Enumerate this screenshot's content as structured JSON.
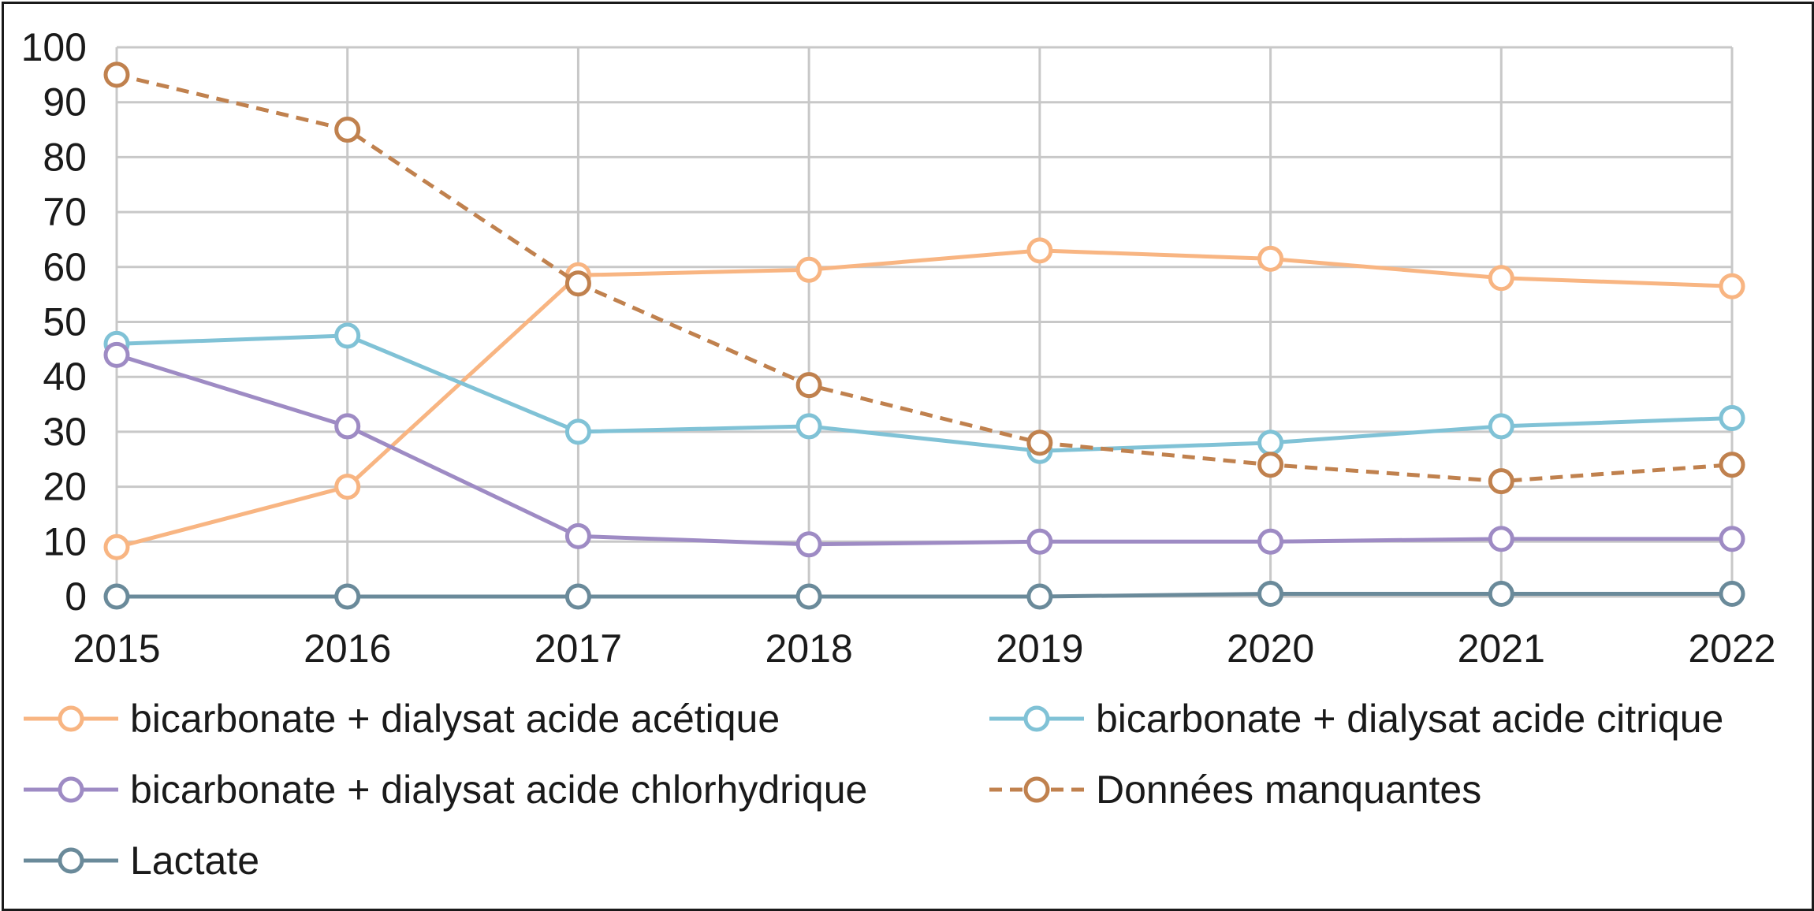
{
  "chart_data": {
    "type": "line",
    "x": [
      "2015",
      "2016",
      "2017",
      "2018",
      "2019",
      "2020",
      "2021",
      "2022"
    ],
    "ylim": [
      0,
      100
    ],
    "yticks": [
      "0",
      "10",
      "20",
      "30",
      "40",
      "50",
      "60",
      "70",
      "80",
      "90",
      "100"
    ],
    "grid": true,
    "legend_position": "bottom",
    "series": [
      {
        "name": "bicarbonate + dialysat acide acétique",
        "color": "#F8B582",
        "dashed": false,
        "values": [
          9,
          20,
          58.5,
          59.5,
          63,
          61.5,
          58,
          56.5
        ]
      },
      {
        "name": "bicarbonate + dialysat acide citrique",
        "color": "#80C2D6",
        "dashed": false,
        "values": [
          46,
          47.5,
          30,
          31,
          26.5,
          28,
          31,
          32.5
        ]
      },
      {
        "name": "bicarbonate + dialysat acide chlorhydrique",
        "color": "#9E8BC4",
        "dashed": false,
        "values": [
          44,
          31,
          11,
          9.5,
          10,
          10,
          10.5,
          10.5
        ]
      },
      {
        "name": "Données manquantes",
        "color": "#C0814E",
        "dashed": true,
        "values": [
          95,
          85,
          57,
          38.5,
          28,
          24,
          21,
          24
        ]
      },
      {
        "name": "Lactate",
        "color": "#6A8A9A",
        "dashed": false,
        "values": [
          0,
          0,
          0,
          0,
          0,
          0.5,
          0.5,
          0.5
        ]
      }
    ]
  }
}
